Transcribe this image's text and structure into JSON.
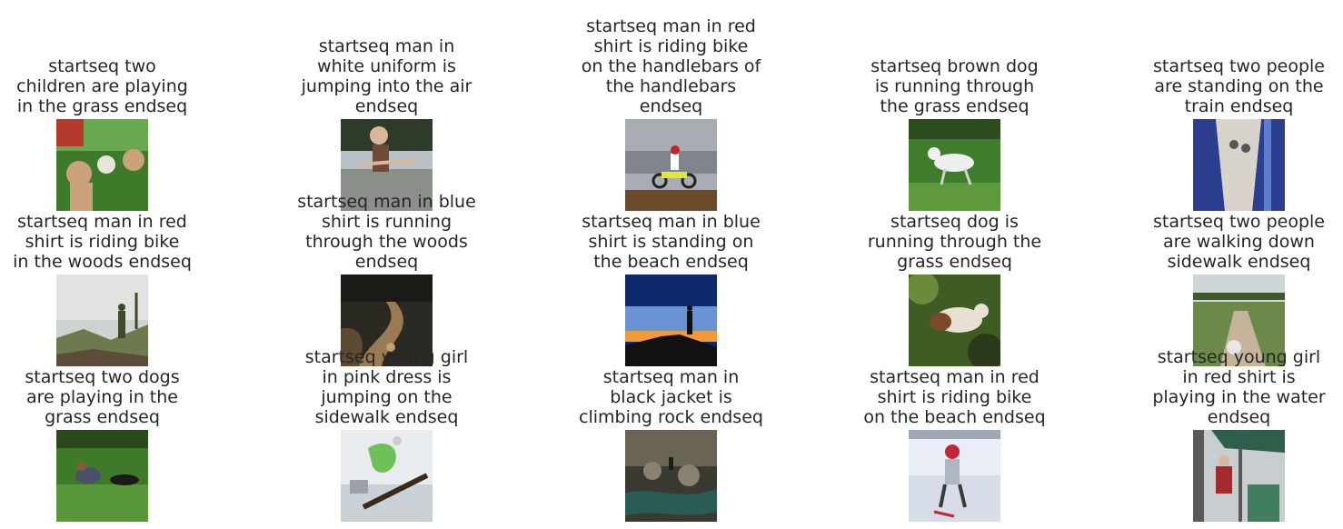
{
  "grid": {
    "items": [
      {
        "caption": "startseq two\nchildren are playing\nin the grass endseq",
        "scene": "kids-grass",
        "colors": [
          "#3e7a2a",
          "#6aa84f",
          "#c9a27c",
          "#b33a2a",
          "#e9e4d8"
        ]
      },
      {
        "caption": "startseq man in\nwhite uniform is\njumping into the air\nendseq",
        "scene": "jump",
        "colors": [
          "#8a8f8a",
          "#6f4a3a",
          "#b8c1c6",
          "#2f3b2a",
          "#d9b79b"
        ]
      },
      {
        "caption": "startseq man in red\nshirt is riding bike\non the handlebars of\nthe handlebars\nendseq",
        "scene": "motocross",
        "colors": [
          "#a9adb3",
          "#7e858c",
          "#6b4a2c",
          "#e2e82e",
          "#c0262d"
        ]
      },
      {
        "caption": "startseq brown dog\nis running through\nthe grass endseq",
        "scene": "dog-grass",
        "colors": [
          "#3f7d2c",
          "#5e9a3d",
          "#2b4d1e",
          "#eeeeee",
          "#cfd4c9"
        ]
      },
      {
        "caption": "startseq two people\nare standing on the\ntrain endseq",
        "scene": "slide",
        "colors": [
          "#2c3f8f",
          "#d8d4cc",
          "#f0efe9",
          "#5a7fd0",
          "#1c2a66"
        ]
      },
      {
        "caption": "startseq man in red\nshirt is riding bike\nin the woods endseq",
        "scene": "foggy-hill",
        "colors": [
          "#e1e3e0",
          "#cfd3cf",
          "#6c7a4e",
          "#3f4a2c",
          "#5b4d3a"
        ]
      },
      {
        "caption": "startseq man in blue\nshirt is running\nthrough the woods\nendseq",
        "scene": "trail",
        "colors": [
          "#2b2a22",
          "#5d4a32",
          "#9a7a52",
          "#1a1a16",
          "#c0a071"
        ]
      },
      {
        "caption": "startseq man in blue\nshirt is standing on\nthe beach endseq",
        "scene": "silhouette",
        "colors": [
          "#0d2a6a",
          "#2f66b8",
          "#f09a3a",
          "#111111",
          "#6a93d6"
        ]
      },
      {
        "caption": "startseq dog is\nrunning through the\ngrass endseq",
        "scene": "dog-bush",
        "colors": [
          "#3e5c24",
          "#6b8a3a",
          "#e8e0d2",
          "#7a4a2a",
          "#2a3a1a"
        ]
      },
      {
        "caption": "startseq two people\nare walking down\nsidewalk endseq",
        "scene": "garden",
        "colors": [
          "#cfd6da",
          "#6b8a4a",
          "#c4b59a",
          "#3f5a2a",
          "#e6e6e6"
        ]
      },
      {
        "caption": "startseq two dogs\nare playing in the\ngrass endseq",
        "scene": "dogs-lawn",
        "colors": [
          "#3f7a2a",
          "#5a963a",
          "#2a4a1a",
          "#4a4f6a",
          "#1b1b1b"
        ]
      },
      {
        "caption": "startseq young girl\nin pink dress is\njumping on the\nsidewalk endseq",
        "scene": "snowboard",
        "colors": [
          "#e8ecef",
          "#c9d1d6",
          "#6fbf5a",
          "#3a2a1a",
          "#9aa2a8"
        ]
      },
      {
        "caption": "startseq man in\nblack jacket is\nclimbing rock endseq",
        "scene": "river-rocks",
        "colors": [
          "#3b3a30",
          "#6a6455",
          "#2a5b55",
          "#8a8270",
          "#1e1e18"
        ]
      },
      {
        "caption": "startseq man in red\nshirt is riding bike\non the beach endseq",
        "scene": "ski-kid",
        "colors": [
          "#e9eef6",
          "#d6dde8",
          "#c2263a",
          "#3a3a3a",
          "#9ea7b5"
        ]
      },
      {
        "caption": "startseq young girl\nin red shirt is\nplaying in the water\nendseq",
        "scene": "market",
        "colors": [
          "#2f5e4a",
          "#3f7f5f",
          "#c8cdd0",
          "#a52a2a",
          "#5a5a5a"
        ]
      }
    ]
  }
}
